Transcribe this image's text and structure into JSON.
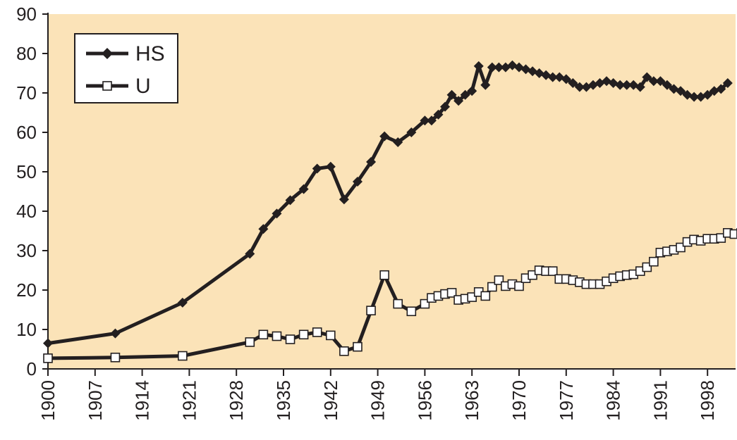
{
  "chart_data": {
    "type": "line",
    "title": "",
    "xlabel": "",
    "ylabel": "",
    "xlim": [
      1900,
      2002
    ],
    "ylim": [
      0,
      90
    ],
    "y_ticks": [
      "0",
      "10",
      "20",
      "30",
      "40",
      "50",
      "60",
      "70",
      "80",
      "90"
    ],
    "x_ticks": [
      "1900",
      "1907",
      "1914",
      "1921",
      "1928",
      "1935",
      "1942",
      "1949",
      "1956",
      "1963",
      "1970",
      "1977",
      "1984",
      "1991",
      "1998"
    ],
    "grid": false,
    "legend_position": "top-left",
    "colors": {
      "plot_background": "#fbe3b8",
      "line": "#231f20",
      "open_marker_fill": "#ffffff"
    },
    "series": [
      {
        "name": "HS",
        "marker": "filled-diamond",
        "points": [
          [
            1900,
            6.5
          ],
          [
            1910,
            9
          ],
          [
            1920,
            16.8
          ],
          [
            1930,
            29.2
          ],
          [
            1932,
            35.5
          ],
          [
            1934,
            39.4
          ],
          [
            1936,
            42.8
          ],
          [
            1938,
            45.6
          ],
          [
            1940,
            50.8
          ],
          [
            1942,
            51.3
          ],
          [
            1944,
            43
          ],
          [
            1946,
            47.5
          ],
          [
            1948,
            52.5
          ],
          [
            1950,
            59
          ],
          [
            1952,
            57.5
          ],
          [
            1954,
            60
          ],
          [
            1956,
            63
          ],
          [
            1957,
            63
          ],
          [
            1958,
            64.5
          ],
          [
            1959,
            66.5
          ],
          [
            1960,
            69.5
          ],
          [
            1961,
            68
          ],
          [
            1962,
            69.5
          ],
          [
            1963,
            70.5
          ],
          [
            1964,
            76.8
          ],
          [
            1965,
            72
          ],
          [
            1966,
            76.5
          ],
          [
            1967,
            76.5
          ],
          [
            1968,
            76.5
          ],
          [
            1969,
            77
          ],
          [
            1970,
            76.5
          ],
          [
            1971,
            76
          ],
          [
            1972,
            75.5
          ],
          [
            1973,
            75
          ],
          [
            1974,
            74.5
          ],
          [
            1975,
            74
          ],
          [
            1976,
            74
          ],
          [
            1977,
            73.5
          ],
          [
            1978,
            72.5
          ],
          [
            1979,
            71.5
          ],
          [
            1980,
            71.5
          ],
          [
            1981,
            72
          ],
          [
            1982,
            72.5
          ],
          [
            1983,
            73
          ],
          [
            1984,
            72.5
          ],
          [
            1985,
            72
          ],
          [
            1986,
            72
          ],
          [
            1987,
            72
          ],
          [
            1988,
            71.5
          ],
          [
            1989,
            74
          ],
          [
            1990,
            73
          ],
          [
            1991,
            73
          ],
          [
            1992,
            72
          ],
          [
            1993,
            71
          ],
          [
            1994,
            70.5
          ],
          [
            1995,
            69.5
          ],
          [
            1996,
            69
          ],
          [
            1997,
            69
          ],
          [
            1998,
            69.5
          ],
          [
            1999,
            70.5
          ],
          [
            2000,
            71
          ],
          [
            2001,
            72.5
          ]
        ]
      },
      {
        "name": "U",
        "marker": "open-square",
        "points": [
          [
            1900,
            2.7
          ],
          [
            1910,
            2.9
          ],
          [
            1920,
            3.3
          ],
          [
            1930,
            6.8
          ],
          [
            1932,
            8.7
          ],
          [
            1934,
            8.3
          ],
          [
            1936,
            7.5
          ],
          [
            1938,
            8.7
          ],
          [
            1940,
            9.3
          ],
          [
            1942,
            8.5
          ],
          [
            1944,
            4.5
          ],
          [
            1946,
            5.6
          ],
          [
            1948,
            14.8
          ],
          [
            1950,
            23.8
          ],
          [
            1952,
            16.5
          ],
          [
            1954,
            14.6
          ],
          [
            1956,
            16.5
          ],
          [
            1957,
            18
          ],
          [
            1958,
            18.5
          ],
          [
            1959,
            19
          ],
          [
            1960,
            19.3
          ],
          [
            1961,
            17.5
          ],
          [
            1962,
            17.8
          ],
          [
            1963,
            18.2
          ],
          [
            1964,
            19.5
          ],
          [
            1965,
            18.5
          ],
          [
            1966,
            20.8
          ],
          [
            1967,
            22.5
          ],
          [
            1968,
            21
          ],
          [
            1969,
            21.5
          ],
          [
            1970,
            21
          ],
          [
            1971,
            23
          ],
          [
            1972,
            23.8
          ],
          [
            1973,
            25
          ],
          [
            1974,
            24.8
          ],
          [
            1975,
            24.8
          ],
          [
            1976,
            22.8
          ],
          [
            1977,
            22.8
          ],
          [
            1978,
            22.5
          ],
          [
            1979,
            22
          ],
          [
            1980,
            21.5
          ],
          [
            1981,
            21.5
          ],
          [
            1982,
            21.5
          ],
          [
            1983,
            22.2
          ],
          [
            1984,
            23
          ],
          [
            1985,
            23.5
          ],
          [
            1986,
            23.8
          ],
          [
            1987,
            24
          ],
          [
            1988,
            24.8
          ],
          [
            1989,
            25.8
          ],
          [
            1990,
            27.2
          ],
          [
            1991,
            29.5
          ],
          [
            1992,
            29.8
          ],
          [
            1993,
            30.2
          ],
          [
            1994,
            30.8
          ],
          [
            1995,
            32.2
          ],
          [
            1996,
            32.8
          ],
          [
            1997,
            32.5
          ],
          [
            1998,
            33
          ],
          [
            1999,
            33
          ],
          [
            2000,
            33.2
          ],
          [
            2001,
            34.5
          ],
          [
            2002,
            34.2
          ],
          [
            2003,
            34.5
          ]
        ]
      }
    ]
  }
}
